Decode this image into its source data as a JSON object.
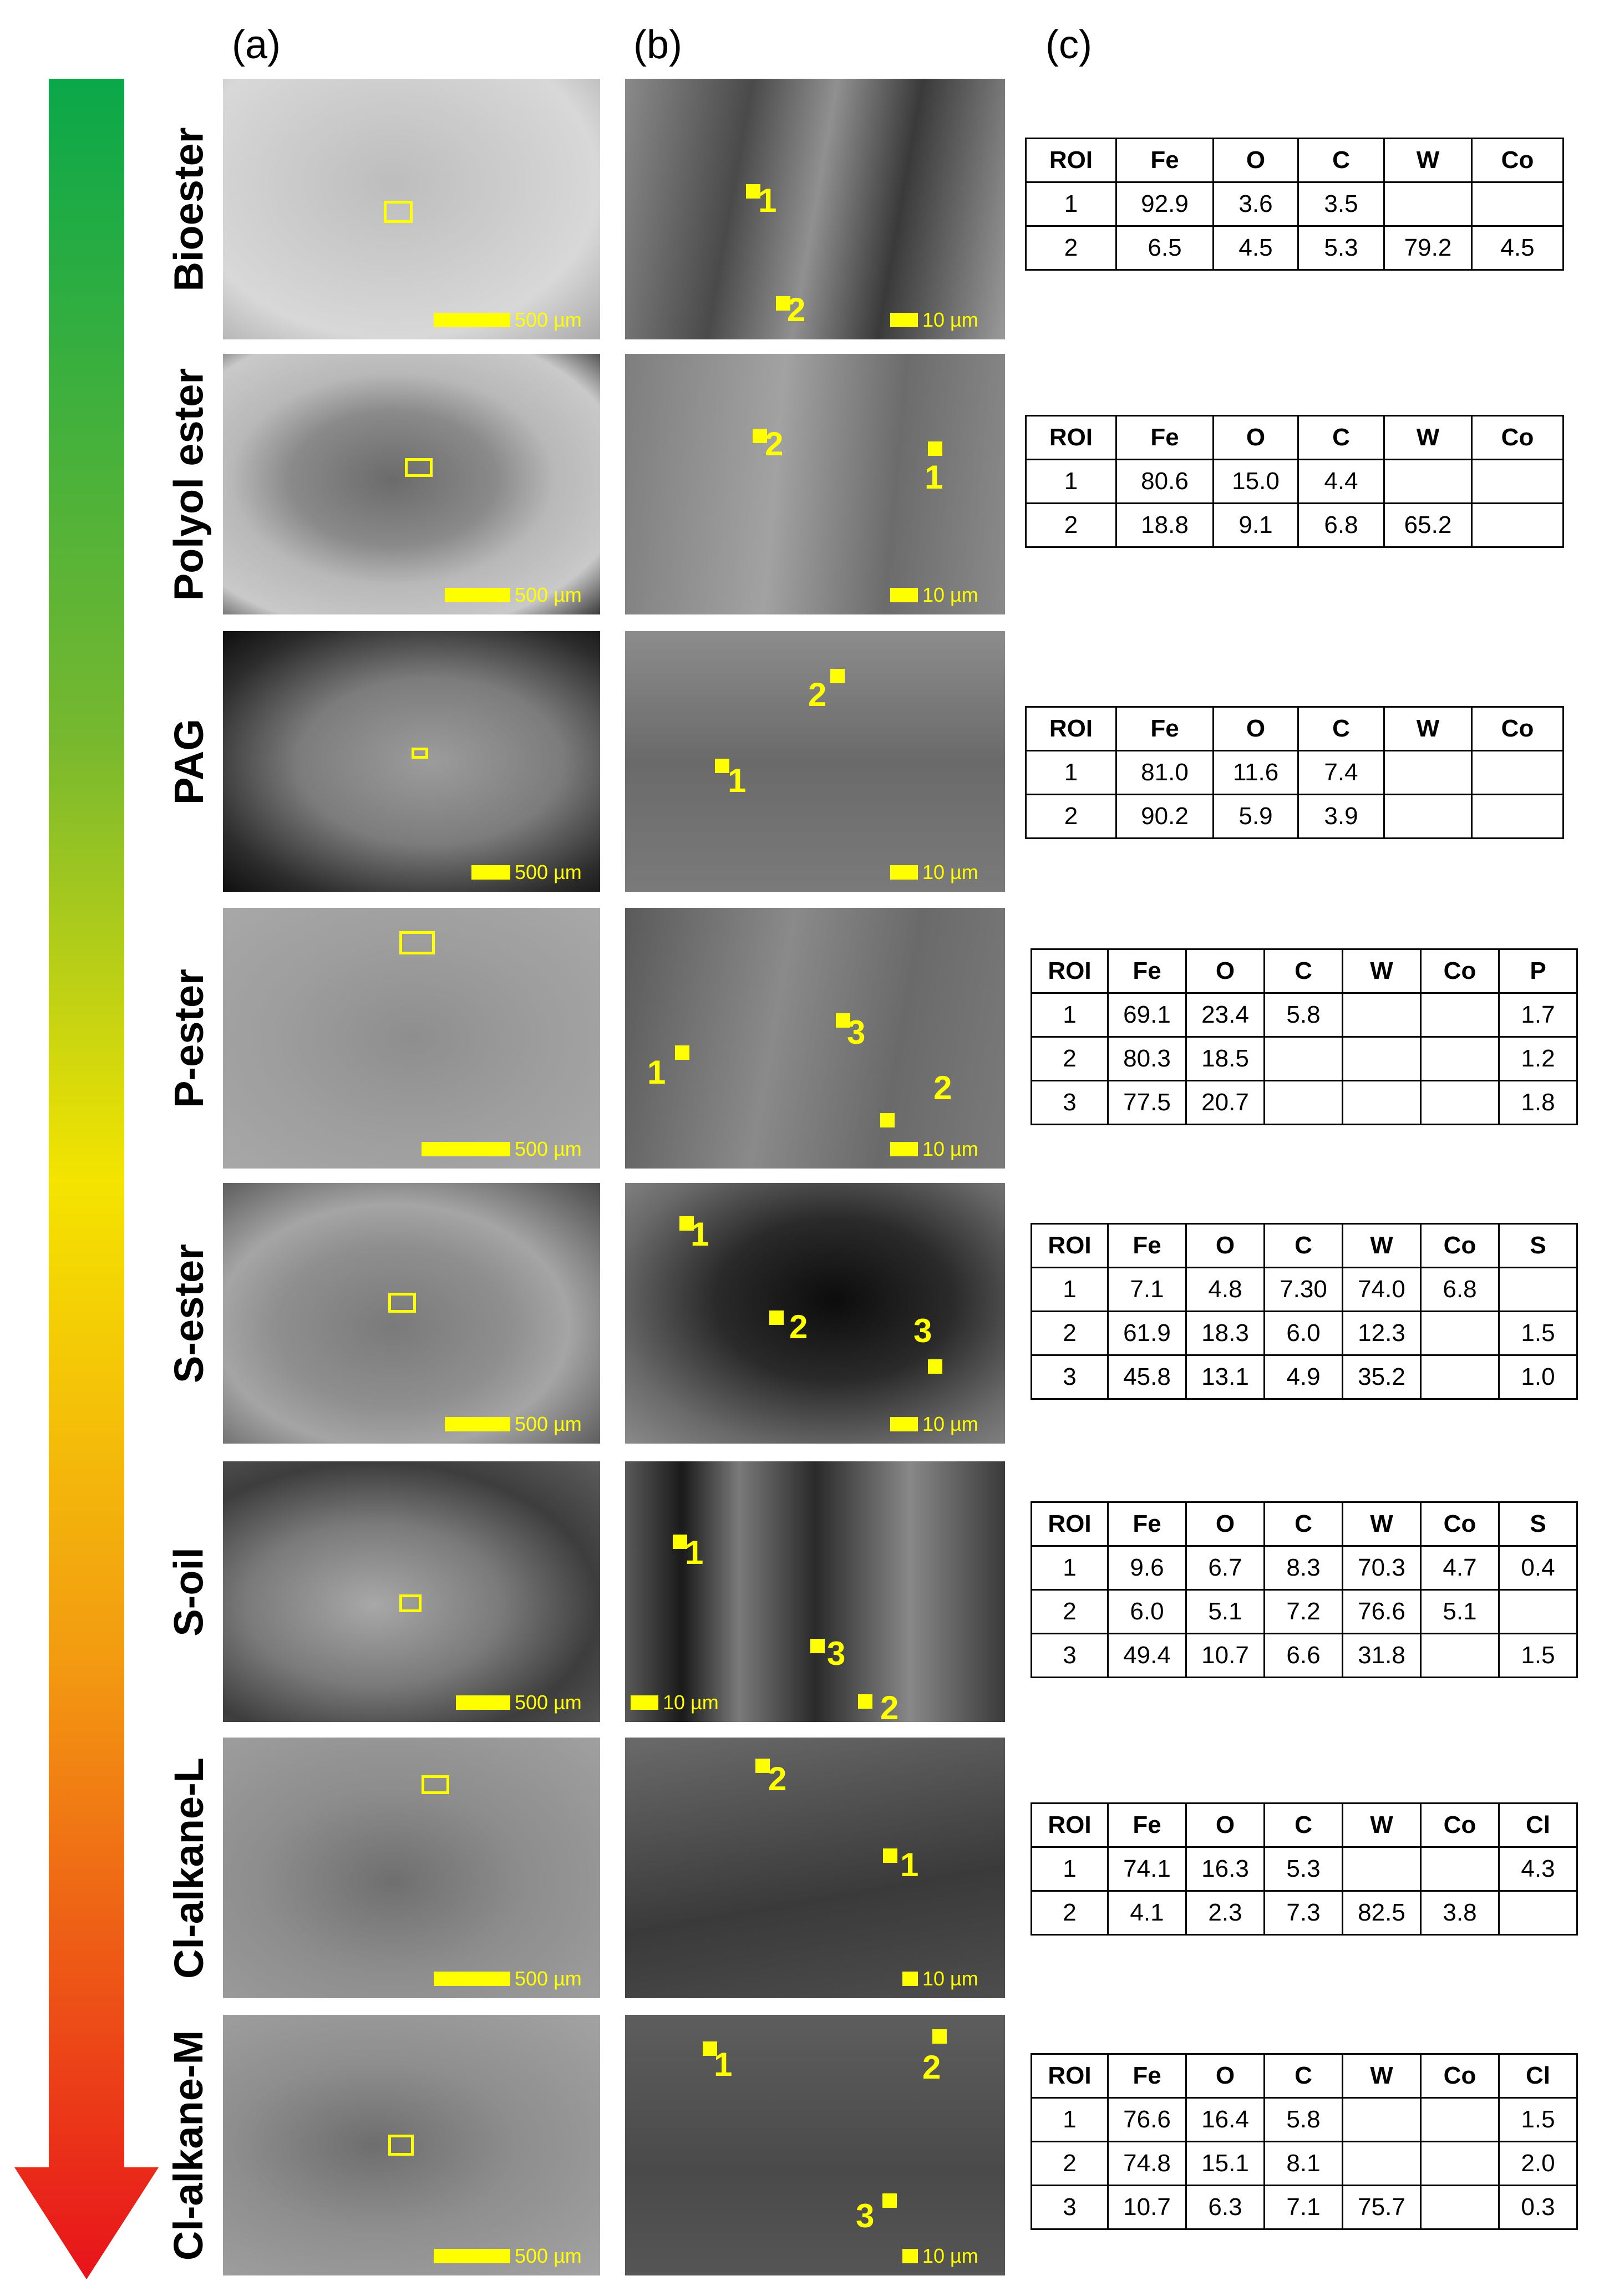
{
  "column_labels": [
    "(a)",
    "(b)",
    "(c)"
  ],
  "arrow_colors": [
    "#0aa84a",
    "#77b82f",
    "#f4e400",
    "#f39a11",
    "#e8131b"
  ],
  "scale_a": "500 µm",
  "scale_b": "10 µm",
  "rows": [
    {
      "label": "Bioester",
      "b_markers": [
        "1",
        "2"
      ],
      "table": {
        "headers": [
          "ROI",
          "Fe",
          "O",
          "C",
          "W",
          "Co"
        ],
        "rows": [
          [
            "1",
            "92.9",
            "3.6",
            "3.5",
            "",
            ""
          ],
          [
            "2",
            "6.5",
            "4.5",
            "5.3",
            "79.2",
            "4.5"
          ]
        ]
      }
    },
    {
      "label": "Polyol ester",
      "b_markers": [
        "2",
        "1"
      ],
      "table": {
        "headers": [
          "ROI",
          "Fe",
          "O",
          "C",
          "W",
          "Co"
        ],
        "rows": [
          [
            "1",
            "80.6",
            "15.0",
            "4.4",
            "",
            ""
          ],
          [
            "2",
            "18.8",
            "9.1",
            "6.8",
            "65.2",
            ""
          ]
        ]
      }
    },
    {
      "label": "PAG",
      "b_markers": [
        "2",
        "1"
      ],
      "table": {
        "headers": [
          "ROI",
          "Fe",
          "O",
          "C",
          "W",
          "Co"
        ],
        "rows": [
          [
            "1",
            "81.0",
            "11.6",
            "7.4",
            "",
            ""
          ],
          [
            "2",
            "90.2",
            "5.9",
            "3.9",
            "",
            ""
          ]
        ]
      }
    },
    {
      "label": "P-ester",
      "b_markers": [
        "1",
        "3",
        "2"
      ],
      "table": {
        "headers": [
          "ROI",
          "Fe",
          "O",
          "C",
          "W",
          "Co",
          "P"
        ],
        "rows": [
          [
            "1",
            "69.1",
            "23.4",
            "5.8",
            "",
            "",
            "1.7"
          ],
          [
            "2",
            "80.3",
            "18.5",
            "",
            "",
            "",
            "1.2"
          ],
          [
            "3",
            "77.5",
            "20.7",
            "",
            "",
            "",
            "1.8"
          ]
        ]
      }
    },
    {
      "label": "S-ester",
      "b_markers": [
        "1",
        "2",
        "3"
      ],
      "table": {
        "headers": [
          "ROI",
          "Fe",
          "O",
          "C",
          "W",
          "Co",
          "S"
        ],
        "rows": [
          [
            "1",
            "7.1",
            "4.8",
            "7.30",
            "74.0",
            "6.8",
            ""
          ],
          [
            "2",
            "61.9",
            "18.3",
            "6.0",
            "12.3",
            "",
            "1.5"
          ],
          [
            "3",
            "45.8",
            "13.1",
            "4.9",
            "35.2",
            "",
            "1.0"
          ]
        ]
      }
    },
    {
      "label": "S-oil",
      "b_markers": [
        "1",
        "3",
        "2"
      ],
      "table": {
        "headers": [
          "ROI",
          "Fe",
          "O",
          "C",
          "W",
          "Co",
          "S"
        ],
        "rows": [
          [
            "1",
            "9.6",
            "6.7",
            "8.3",
            "70.3",
            "4.7",
            "0.4"
          ],
          [
            "2",
            "6.0",
            "5.1",
            "7.2",
            "76.6",
            "5.1",
            ""
          ],
          [
            "3",
            "49.4",
            "10.7",
            "6.6",
            "31.8",
            "",
            "1.5"
          ]
        ]
      }
    },
    {
      "label": "Cl-alkane-L",
      "b_markers": [
        "2",
        "1"
      ],
      "table": {
        "headers": [
          "ROI",
          "Fe",
          "O",
          "C",
          "W",
          "Co",
          "Cl"
        ],
        "rows": [
          [
            "1",
            "74.1",
            "16.3",
            "5.3",
            "",
            "",
            "4.3"
          ],
          [
            "2",
            "4.1",
            "2.3",
            "7.3",
            "82.5",
            "3.8",
            ""
          ]
        ]
      }
    },
    {
      "label": "Cl-alkane-M",
      "b_markers": [
        "1",
        "2",
        "3"
      ],
      "table": {
        "headers": [
          "ROI",
          "Fe",
          "O",
          "C",
          "W",
          "Co",
          "Cl"
        ],
        "rows": [
          [
            "1",
            "76.6",
            "16.4",
            "5.8",
            "",
            "",
            "1.5"
          ],
          [
            "2",
            "74.8",
            "15.1",
            "8.1",
            "",
            "",
            "2.0"
          ],
          [
            "3",
            "10.7",
            "6.3",
            "7.1",
            "75.7",
            "",
            "0.3"
          ]
        ]
      }
    }
  ]
}
